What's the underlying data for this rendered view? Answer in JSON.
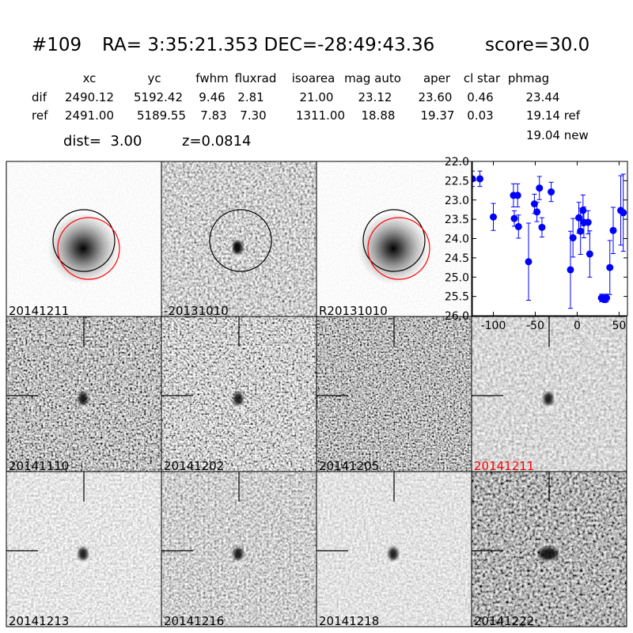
{
  "header": {
    "id": "#109",
    "coords": "RA= 3:35:21.353 DEC=-28:49:43.36",
    "score": "score=30.0"
  },
  "table": {
    "columns": [
      "xc",
      "yc",
      "fwhm",
      "fluxrad",
      "isoarea",
      "mag auto",
      "aper",
      "cl star",
      "phmag"
    ],
    "rows": [
      [
        "dif",
        "2490.12",
        "5192.42",
        "9.46",
        "2.81",
        "21.00",
        "23.12",
        "23.60",
        "0.46",
        "23.44"
      ],
      [
        "ref",
        "2491.00",
        "5189.55",
        "7.83",
        "7.30",
        "1311.00",
        "18.88",
        "19.37",
        "0.03",
        "19.14 ref"
      ]
    ],
    "extra": "19.04 new"
  },
  "dist": "dist=  3.00",
  "z": "z=0.0814",
  "panels": [
    "20141211",
    "-20131010",
    "R20131010",
    "20141110",
    "20141202",
    "20141205",
    "20141211",
    "20141213",
    "20141216",
    "20141218",
    "20141222"
  ],
  "chart_data": {
    "type": "scatter",
    "xlim": [
      -125,
      60
    ],
    "ylim": [
      26,
      22
    ],
    "xticks": [
      -100,
      -50,
      0,
      50
    ],
    "yticks": [
      {
        "value": 22,
        "label": "22.0"
      },
      22.5,
      {
        "value": 23,
        "label": "23.0"
      },
      23.5,
      {
        "value": 24,
        "label": "24.0"
      },
      24.5,
      {
        "value": 25,
        "label": "25.0"
      },
      25.5,
      {
        "value": 26,
        "label": "26.0"
      }
    ],
    "series": [
      {
        "color": "#0000ff",
        "x": [
          -125,
          -116,
          -100,
          -76,
          -71,
          -75,
          -70,
          -58,
          -51,
          -48,
          -45,
          -42,
          -31,
          -8,
          -5,
          2,
          4,
          7,
          8,
          13,
          15,
          29,
          33,
          35,
          39,
          43,
          52,
          55
        ],
        "values": [
          22.45,
          22.45,
          23.44,
          22.88,
          22.88,
          23.48,
          23.69,
          24.6,
          23.1,
          23.31,
          22.69,
          23.71,
          22.79,
          24.81,
          23.98,
          23.46,
          23.81,
          23.27,
          23.58,
          23.58,
          24.4,
          25.54,
          25.56,
          25.54,
          24.75,
          23.79,
          23.27,
          23.33
        ],
        "errors": [
          0.2,
          0.2,
          0.35,
          0.3,
          0.3,
          0.2,
          0.3,
          1.0,
          0.25,
          0.25,
          0.3,
          0.25,
          0.25,
          1.0,
          0.5,
          0.4,
          0.6,
          0.4,
          0.4,
          0.3,
          0.6,
          0.1,
          0.1,
          0.1,
          0.7,
          0.6,
          0.9,
          1.0
        ]
      }
    ]
  }
}
